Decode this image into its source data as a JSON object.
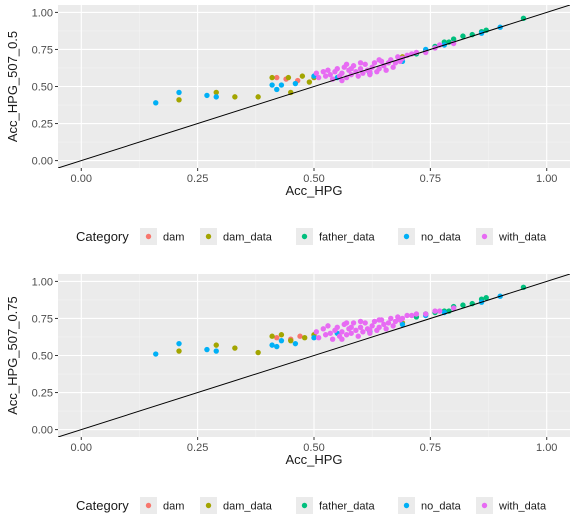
{
  "colors": {
    "panel_bg": "#ebebeb",
    "grid_major": "#ffffff",
    "grid_minor": "#f4f4f4",
    "reference_line": "#000000",
    "legend_key_bg": "#ebebeb"
  },
  "legend": {
    "title": "Category",
    "placement": "bottom",
    "items": [
      {
        "label": "dam",
        "color": "#F8766D"
      },
      {
        "label": "dam_data",
        "color": "#A3A500"
      },
      {
        "label": "father_data",
        "color": "#00BF7D"
      },
      {
        "label": "no_data",
        "color": "#00B0F6"
      },
      {
        "label": "with_data",
        "color": "#E76BF3"
      }
    ]
  },
  "chart_data": [
    {
      "type": "scatter",
      "xlabel": "Acc_HPG",
      "ylabel": "Acc_HPG_507_0.5",
      "xlim": [
        -0.05,
        1.05
      ],
      "ylim": [
        -0.05,
        1.05
      ],
      "x_ticks": [
        0,
        0.25,
        0.5,
        0.75,
        1
      ],
      "x_tick_labels": [
        "0.00",
        "0.25",
        "0.50",
        "0.75",
        "1.00"
      ],
      "y_ticks": [
        0,
        0.25,
        0.5,
        0.75,
        1
      ],
      "y_tick_labels": [
        "0.00",
        "0.25",
        "0.50",
        "0.75",
        "1.00"
      ],
      "grid": true,
      "reference_line": {
        "slope": 1,
        "intercept": 0
      },
      "series": [
        {
          "name": "dam",
          "points": [
            [
              0.42,
              0.56
            ],
            [
              0.44,
              0.55
            ],
            [
              0.465,
              0.54
            ]
          ]
        },
        {
          "name": "dam_data",
          "points": [
            [
              0.21,
              0.41
            ],
            [
              0.29,
              0.46
            ],
            [
              0.33,
              0.43
            ],
            [
              0.38,
              0.43
            ],
            [
              0.41,
              0.56
            ],
            [
              0.445,
              0.56
            ],
            [
              0.45,
              0.46
            ],
            [
              0.475,
              0.57
            ],
            [
              0.49,
              0.53
            ],
            [
              0.5,
              0.56
            ],
            [
              0.69,
              0.7
            ]
          ]
        },
        {
          "name": "father_data",
          "points": [
            [
              0.72,
              0.72
            ],
            [
              0.74,
              0.74
            ],
            [
              0.76,
              0.77
            ],
            [
              0.78,
              0.8
            ],
            [
              0.79,
              0.8
            ],
            [
              0.8,
              0.82
            ],
            [
              0.82,
              0.84
            ],
            [
              0.84,
              0.85
            ],
            [
              0.86,
              0.87
            ],
            [
              0.87,
              0.88
            ],
            [
              0.95,
              0.96
            ]
          ]
        },
        {
          "name": "no_data",
          "points": [
            [
              0.16,
              0.39
            ],
            [
              0.21,
              0.46
            ],
            [
              0.27,
              0.44
            ],
            [
              0.29,
              0.43
            ],
            [
              0.41,
              0.51
            ],
            [
              0.42,
              0.48
            ],
            [
              0.43,
              0.51
            ],
            [
              0.46,
              0.52
            ],
            [
              0.5,
              0.57
            ],
            [
              0.55,
              0.56
            ],
            [
              0.62,
              0.59
            ],
            [
              0.69,
              0.67
            ],
            [
              0.74,
              0.75
            ],
            [
              0.78,
              0.78
            ],
            [
              0.86,
              0.86
            ],
            [
              0.9,
              0.9
            ]
          ]
        },
        {
          "name": "with_data",
          "points": [
            [
              0.505,
              0.59
            ],
            [
              0.51,
              0.56
            ],
            [
              0.52,
              0.6
            ],
            [
              0.525,
              0.57
            ],
            [
              0.53,
              0.61
            ],
            [
              0.535,
              0.58
            ],
            [
              0.54,
              0.55
            ],
            [
              0.545,
              0.6
            ],
            [
              0.55,
              0.62
            ],
            [
              0.555,
              0.57
            ],
            [
              0.56,
              0.59
            ],
            [
              0.565,
              0.63
            ],
            [
              0.57,
              0.56
            ],
            [
              0.575,
              0.61
            ],
            [
              0.58,
              0.58
            ],
            [
              0.585,
              0.64
            ],
            [
              0.59,
              0.6
            ],
            [
              0.595,
              0.57
            ],
            [
              0.6,
              0.62
            ],
            [
              0.605,
              0.59
            ],
            [
              0.61,
              0.65
            ],
            [
              0.615,
              0.61
            ],
            [
              0.62,
              0.58
            ],
            [
              0.625,
              0.63
            ],
            [
              0.63,
              0.66
            ],
            [
              0.635,
              0.6
            ],
            [
              0.64,
              0.62
            ],
            [
              0.645,
              0.67
            ],
            [
              0.65,
              0.64
            ],
            [
              0.655,
              0.61
            ],
            [
              0.66,
              0.66
            ],
            [
              0.665,
              0.68
            ],
            [
              0.67,
              0.63
            ],
            [
              0.675,
              0.66
            ],
            [
              0.68,
              0.7
            ],
            [
              0.685,
              0.67
            ],
            [
              0.69,
              0.69
            ],
            [
              0.7,
              0.71
            ],
            [
              0.71,
              0.72
            ],
            [
              0.72,
              0.73
            ],
            [
              0.74,
              0.73
            ],
            [
              0.76,
              0.76
            ],
            [
              0.77,
              0.78
            ],
            [
              0.8,
              0.79
            ],
            [
              0.57,
              0.65
            ],
            [
              0.6,
              0.66
            ],
            [
              0.56,
              0.54
            ],
            [
              0.62,
              0.6
            ],
            [
              0.64,
              0.68
            ],
            [
              0.58,
              0.62
            ]
          ]
        }
      ]
    },
    {
      "type": "scatter",
      "xlabel": "Acc_HPG",
      "ylabel": "Acc_HPG_507_0.75",
      "xlim": [
        -0.05,
        1.05
      ],
      "ylim": [
        -0.05,
        1.05
      ],
      "x_ticks": [
        0,
        0.25,
        0.5,
        0.75,
        1
      ],
      "x_tick_labels": [
        "0.00",
        "0.25",
        "0.50",
        "0.75",
        "1.00"
      ],
      "y_ticks": [
        0,
        0.25,
        0.5,
        0.75,
        1
      ],
      "y_tick_labels": [
        "0.00",
        "0.25",
        "0.50",
        "0.75",
        "1.00"
      ],
      "grid": true,
      "reference_line": {
        "slope": 1,
        "intercept": 0
      },
      "series": [
        {
          "name": "dam",
          "points": [
            [
              0.42,
              0.62
            ],
            [
              0.45,
              0.61
            ],
            [
              0.47,
              0.63
            ]
          ]
        },
        {
          "name": "dam_data",
          "points": [
            [
              0.21,
              0.53
            ],
            [
              0.29,
              0.57
            ],
            [
              0.33,
              0.55
            ],
            [
              0.38,
              0.52
            ],
            [
              0.41,
              0.63
            ],
            [
              0.43,
              0.64
            ],
            [
              0.45,
              0.6
            ],
            [
              0.48,
              0.62
            ],
            [
              0.5,
              0.64
            ],
            [
              0.69,
              0.72
            ]
          ]
        },
        {
          "name": "father_data",
          "points": [
            [
              0.72,
              0.76
            ],
            [
              0.74,
              0.78
            ],
            [
              0.76,
              0.79
            ],
            [
              0.78,
              0.8
            ],
            [
              0.79,
              0.8
            ],
            [
              0.8,
              0.83
            ],
            [
              0.82,
              0.84
            ],
            [
              0.84,
              0.85
            ],
            [
              0.86,
              0.88
            ],
            [
              0.87,
              0.89
            ],
            [
              0.95,
              0.96
            ]
          ]
        },
        {
          "name": "no_data",
          "points": [
            [
              0.16,
              0.51
            ],
            [
              0.21,
              0.58
            ],
            [
              0.27,
              0.54
            ],
            [
              0.29,
              0.53
            ],
            [
              0.41,
              0.57
            ],
            [
              0.42,
              0.56
            ],
            [
              0.43,
              0.6
            ],
            [
              0.46,
              0.58
            ],
            [
              0.5,
              0.62
            ],
            [
              0.55,
              0.65
            ],
            [
              0.62,
              0.66
            ],
            [
              0.69,
              0.71
            ],
            [
              0.74,
              0.77
            ],
            [
              0.78,
              0.79
            ],
            [
              0.86,
              0.86
            ],
            [
              0.9,
              0.9
            ]
          ]
        },
        {
          "name": "with_data",
          "points": [
            [
              0.505,
              0.66
            ],
            [
              0.51,
              0.62
            ],
            [
              0.52,
              0.68
            ],
            [
              0.525,
              0.64
            ],
            [
              0.53,
              0.7
            ],
            [
              0.535,
              0.65
            ],
            [
              0.54,
              0.61
            ],
            [
              0.545,
              0.67
            ],
            [
              0.55,
              0.69
            ],
            [
              0.555,
              0.63
            ],
            [
              0.56,
              0.66
            ],
            [
              0.565,
              0.71
            ],
            [
              0.57,
              0.64
            ],
            [
              0.575,
              0.68
            ],
            [
              0.58,
              0.65
            ],
            [
              0.585,
              0.72
            ],
            [
              0.59,
              0.67
            ],
            [
              0.595,
              0.63
            ],
            [
              0.6,
              0.69
            ],
            [
              0.605,
              0.66
            ],
            [
              0.61,
              0.72
            ],
            [
              0.615,
              0.68
            ],
            [
              0.62,
              0.65
            ],
            [
              0.625,
              0.7
            ],
            [
              0.63,
              0.73
            ],
            [
              0.635,
              0.67
            ],
            [
              0.64,
              0.69
            ],
            [
              0.645,
              0.74
            ],
            [
              0.65,
              0.71
            ],
            [
              0.655,
              0.68
            ],
            [
              0.66,
              0.72
            ],
            [
              0.665,
              0.75
            ],
            [
              0.67,
              0.7
            ],
            [
              0.675,
              0.73
            ],
            [
              0.68,
              0.76
            ],
            [
              0.685,
              0.74
            ],
            [
              0.69,
              0.75
            ],
            [
              0.7,
              0.77
            ],
            [
              0.71,
              0.77
            ],
            [
              0.72,
              0.78
            ],
            [
              0.74,
              0.78
            ],
            [
              0.76,
              0.8
            ],
            [
              0.77,
              0.8
            ],
            [
              0.8,
              0.82
            ],
            [
              0.57,
              0.72
            ],
            [
              0.6,
              0.73
            ],
            [
              0.56,
              0.61
            ],
            [
              0.62,
              0.67
            ],
            [
              0.64,
              0.74
            ],
            [
              0.58,
              0.69
            ]
          ]
        }
      ]
    }
  ]
}
